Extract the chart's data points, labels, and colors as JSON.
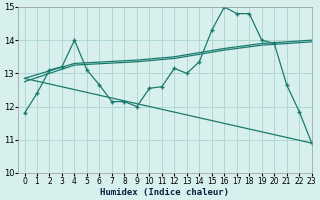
{
  "xlabel": "Humidex (Indice chaleur)",
  "xlim": [
    -0.5,
    23
  ],
  "ylim": [
    10,
    15
  ],
  "yticks": [
    10,
    11,
    12,
    13,
    14,
    15
  ],
  "xticks": [
    0,
    1,
    2,
    3,
    4,
    5,
    6,
    7,
    8,
    9,
    10,
    11,
    12,
    13,
    14,
    15,
    16,
    17,
    18,
    19,
    20,
    21,
    22,
    23
  ],
  "bg_color": "#d7f0ed",
  "grid_color": "#aad4ce",
  "line_color": "#1a7a6e",
  "line1_x": [
    0,
    1,
    2,
    3,
    4,
    5,
    6,
    7,
    8,
    9,
    10,
    11,
    12,
    13,
    14,
    15,
    16,
    17,
    18,
    19,
    20,
    21,
    22,
    23
  ],
  "line1_y": [
    11.8,
    12.4,
    13.1,
    13.2,
    14.0,
    13.1,
    12.65,
    12.15,
    12.15,
    12.0,
    12.55,
    12.6,
    13.15,
    13.0,
    13.35,
    14.3,
    15.0,
    14.8,
    14.8,
    14.0,
    13.9,
    12.65,
    11.85,
    10.9
  ],
  "line2_x": [
    0,
    4,
    9,
    12,
    16,
    19,
    23
  ],
  "line2_y": [
    12.85,
    13.3,
    13.4,
    13.5,
    13.75,
    13.9,
    14.0
  ],
  "line3_x": [
    0,
    4,
    9,
    12,
    16,
    19,
    23
  ],
  "line3_y": [
    12.75,
    13.25,
    13.35,
    13.45,
    13.7,
    13.85,
    13.95
  ],
  "line4_x": [
    0,
    19,
    23
  ],
  "line4_y": [
    12.85,
    14.0,
    10.9
  ]
}
